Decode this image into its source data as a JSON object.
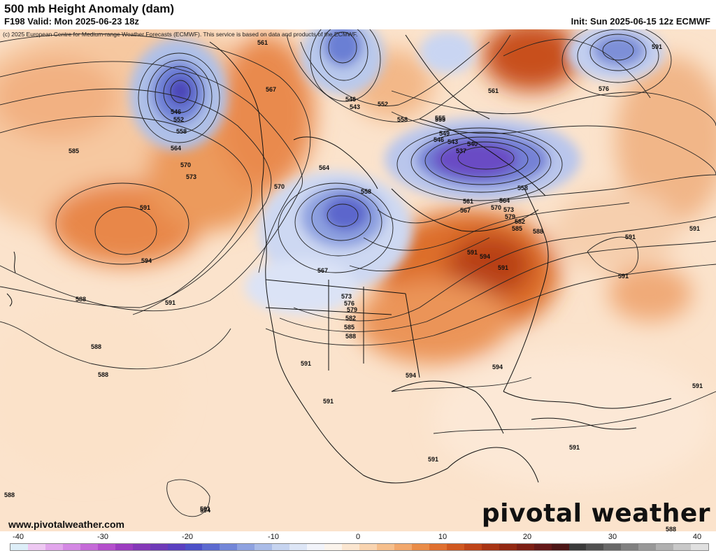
{
  "header": {
    "title": "500 mb Height Anomaly (dam)",
    "valid": "F198 Valid: Mon 2025-06-23 18z",
    "init": "Init: Sun 2025-06-15 12z ECMWF",
    "credit": "(c) 2025 European Centre for Medium-range Weather Forecasts (ECMWF). This service is based on data and products of the ECMWF."
  },
  "footer": {
    "website": "www.pivotalweather.com",
    "brand": "pivotal weather"
  },
  "colorbar": {
    "ticks": [
      "-40",
      "-30",
      "-20",
      "-10",
      "0",
      "10",
      "20",
      "30",
      "40"
    ],
    "colors": [
      "#ddeef8",
      "#eec8f2",
      "#e2a6ec",
      "#d488e4",
      "#c56ad8",
      "#b44fcc",
      "#9c3cc0",
      "#8438b8",
      "#6e3ab8",
      "#5a40c0",
      "#4c50c8",
      "#5c6ad0",
      "#7286d8",
      "#8ea2e0",
      "#aabce8",
      "#c6d4f0",
      "#dde6f6",
      "#f2f4fa",
      "#fbf4ec",
      "#fbe6d0",
      "#f9d4b0",
      "#f6bf8c",
      "#f2a86c",
      "#ea8c48",
      "#e07030",
      "#d05820",
      "#bf4418",
      "#a83414",
      "#922812",
      "#7c1e14",
      "#641818",
      "#4c1616",
      "#3a3a3a",
      "#505050",
      "#686868",
      "#808080",
      "#989898",
      "#b0b0b0",
      "#c8c8c8",
      "#e0e0e0"
    ]
  },
  "contour_labels": [
    "561",
    "546",
    "552",
    "558",
    "567",
    "564",
    "570",
    "573",
    "585",
    "594",
    "591",
    "588",
    "546",
    "543",
    "552",
    "558",
    "555",
    "549",
    "546",
    "543",
    "537",
    "540",
    "561",
    "564",
    "567",
    "570",
    "573",
    "579",
    "582",
    "585",
    "558",
    "576",
    "561",
    "555",
    "558",
    "564",
    "567",
    "570",
    "573",
    "576",
    "579",
    "582",
    "585",
    "588",
    "591",
    "594",
    "591",
    "591",
    "591",
    "591",
    "591",
    "591",
    "591",
    "588",
    "588",
    "588",
    "588",
    "591",
    "594",
    "594",
    "591",
    "591",
    "591",
    "594",
    "591",
    "588"
  ]
}
